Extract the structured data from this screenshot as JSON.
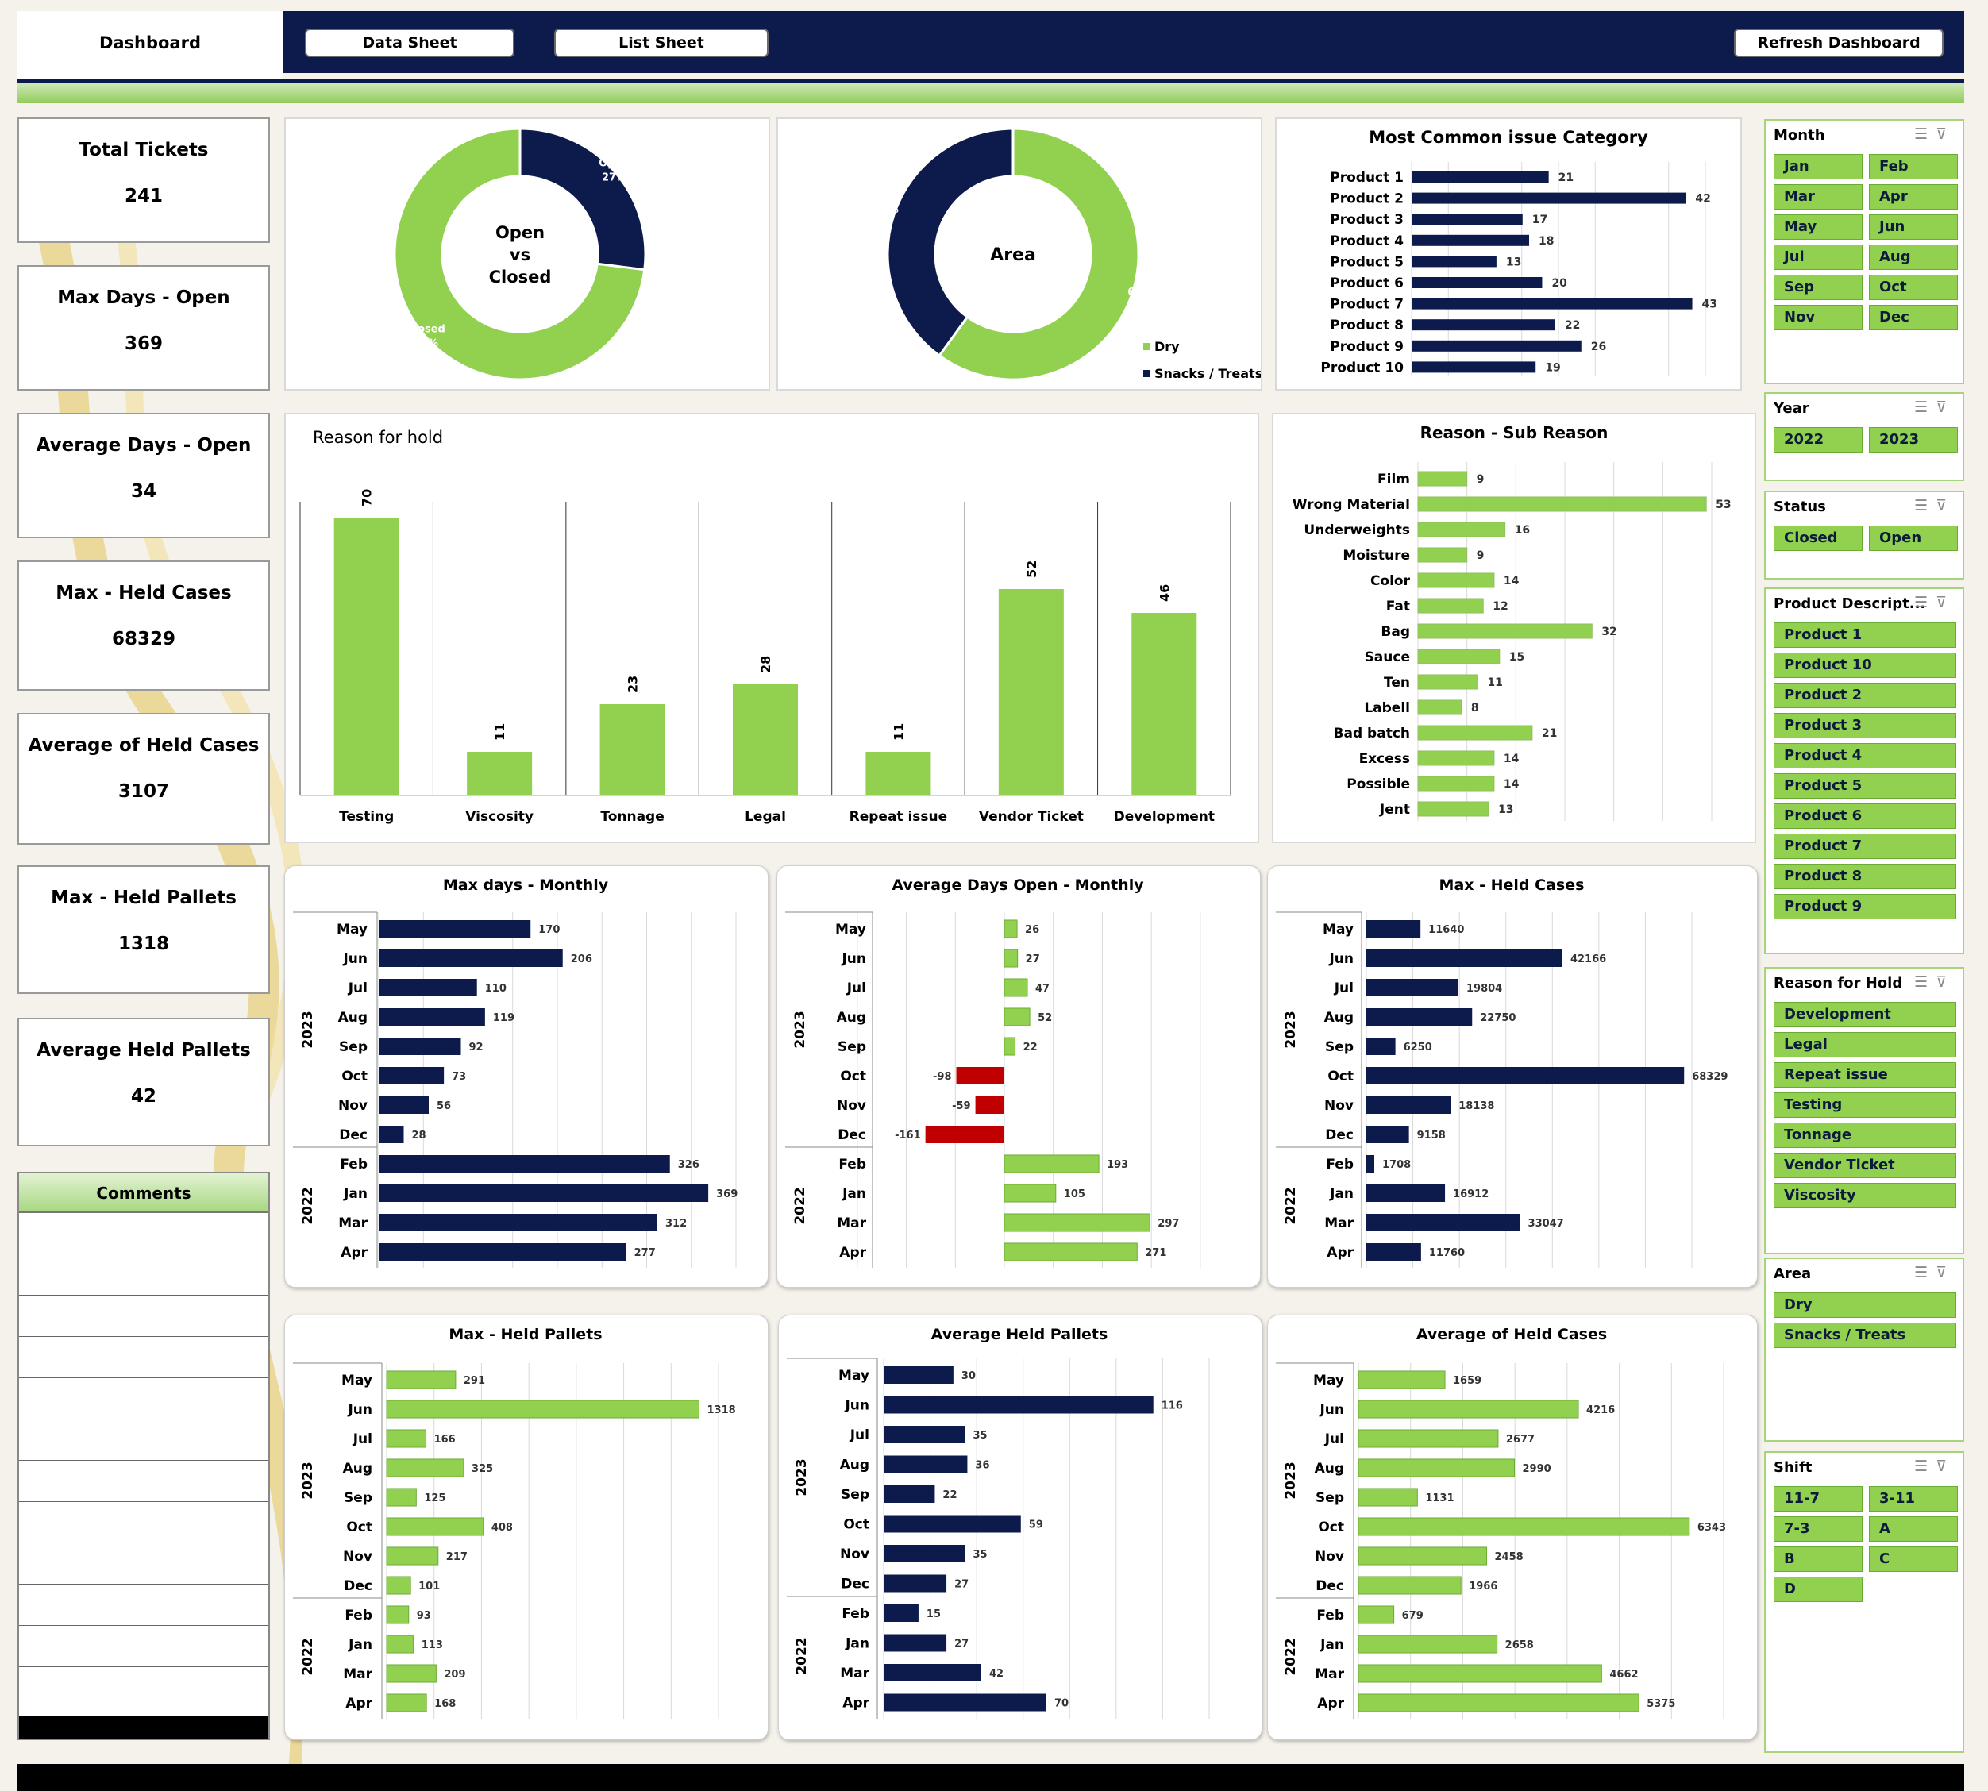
{
  "nav": {
    "dashboard": "Dashboard",
    "data_sheet": "Data Sheet",
    "list_sheet": "List Sheet",
    "refresh": "Refresh Dashboard"
  },
  "kpis": [
    {
      "label": "Total Tickets",
      "value": "241"
    },
    {
      "label": "Max Days - Open",
      "value": "369"
    },
    {
      "label": "Average Days - Open",
      "value": "34"
    },
    {
      "label": "Max - Held Cases",
      "value": "68329"
    },
    {
      "label": "Average of Held Cases",
      "value": "3107"
    },
    {
      "label": "Max - Held Pallets",
      "value": "1318"
    },
    {
      "label": "Average Held Pallets",
      "value": "42"
    }
  ],
  "comments": {
    "title": "Comments"
  },
  "colors": {
    "green": "#92d050",
    "navy": "#0c1b4b",
    "red": "#c00000"
  },
  "slicers": {
    "month": {
      "title": "Month",
      "items": [
        "Jan",
        "Feb",
        "Mar",
        "Apr",
        "May",
        "Jun",
        "Jul",
        "Aug",
        "Sep",
        "Oct",
        "Nov",
        "Dec"
      ]
    },
    "year": {
      "title": "Year",
      "items": [
        "2022",
        "2023"
      ]
    },
    "status": {
      "title": "Status",
      "items": [
        "Closed",
        "Open"
      ]
    },
    "product": {
      "title": "Product Descript...",
      "items": [
        "Product 1",
        "Product 10",
        "Product 2",
        "Product 3",
        "Product 4",
        "Product 5",
        "Product 6",
        "Product 7",
        "Product 8",
        "Product 9"
      ]
    },
    "reason": {
      "title": "Reason for Hold",
      "items": [
        "Development",
        "Legal",
        "Repeat issue",
        "Testing",
        "Tonnage",
        "Vendor Ticket",
        "Viscosity"
      ]
    },
    "area": {
      "title": "Area",
      "items": [
        "Dry",
        "Snacks / Treats"
      ]
    },
    "shift": {
      "title": "Shift",
      "items": [
        "11-7",
        "3-11",
        "7-3",
        "A",
        "B",
        "C",
        "D"
      ]
    },
    "icons": [
      "multi-select-icon",
      "clear-filter-icon"
    ]
  },
  "chart_data": [
    {
      "id": "open-closed",
      "type": "pie",
      "title": "Open vs Closed",
      "categories": [
        "Open",
        "Closed"
      ],
      "values": [
        27,
        73
      ],
      "labels": [
        "27%",
        "73%"
      ],
      "colors": [
        "#0c1b4b",
        "#92d050"
      ]
    },
    {
      "id": "area",
      "type": "pie",
      "title": "Area",
      "categories": [
        "Dry",
        "Snacks / Treats"
      ],
      "values": [
        60,
        40
      ],
      "labels": [
        "60%",
        "40%"
      ],
      "colors": [
        "#92d050",
        "#0c1b4b"
      ],
      "legend": "bottom-right"
    },
    {
      "id": "issue-category",
      "type": "bar",
      "title": "Most Common issue Category",
      "categories": [
        "Product 1",
        "Product 2",
        "Product 3",
        "Product 4",
        "Product 5",
        "Product 6",
        "Product 7",
        "Product 8",
        "Product 9",
        "Product 10"
      ],
      "values": [
        21,
        42,
        17,
        18,
        13,
        20,
        43,
        22,
        26,
        19
      ],
      "color": "#0c1b4b"
    },
    {
      "id": "reason-hold",
      "type": "bar",
      "title": "Reason for hold",
      "categories": [
        "Testing",
        "Viscosity",
        "Tonnage",
        "Legal",
        "Repeat issue",
        "Vendor Ticket",
        "Development"
      ],
      "values": [
        70,
        11,
        23,
        28,
        11,
        52,
        46
      ],
      "color": "#92d050"
    },
    {
      "id": "sub-reason",
      "type": "bar",
      "title": "Reason - Sub Reason",
      "categories": [
        "Film",
        "Wrong Material",
        "Underweights",
        "Moisture",
        "Color",
        "Fat",
        "Bag",
        "Sauce",
        "Ten",
        "Labell",
        "Bad batch",
        "Excess",
        "Possible",
        "Jent"
      ],
      "values": [
        9,
        53,
        16,
        9,
        14,
        12,
        32,
        15,
        11,
        8,
        21,
        14,
        14,
        13
      ],
      "color": "#92d050"
    },
    {
      "id": "max-days-monthly",
      "type": "bar",
      "title": "Max days - Monthly",
      "groups": [
        "2023",
        "2022"
      ],
      "categories": [
        "May",
        "Jun",
        "Jul",
        "Aug",
        "Sep",
        "Oct",
        "Nov",
        "Dec",
        "Feb",
        "Jan",
        "Mar",
        "Apr"
      ],
      "values": [
        170,
        206,
        110,
        119,
        92,
        73,
        56,
        28,
        326,
        369,
        312,
        277
      ],
      "color": "#0c1b4b"
    },
    {
      "id": "avg-days-open-monthly",
      "type": "bar",
      "title": "Average Days Open - Monthly",
      "groups": [
        "2023",
        "2022"
      ],
      "categories": [
        "May",
        "Jun",
        "Jul",
        "Aug",
        "Sep",
        "Oct",
        "Nov",
        "Dec",
        "Feb",
        "Jan",
        "Mar",
        "Apr"
      ],
      "values": [
        26,
        27,
        47,
        52,
        22,
        -98,
        -59,
        -161,
        193,
        105,
        297,
        271
      ],
      "color": "#92d050",
      "negative_color": "#c00000"
    },
    {
      "id": "max-held-cases",
      "type": "bar",
      "title": "Max - Held Cases",
      "groups": [
        "2023",
        "2022"
      ],
      "categories": [
        "May",
        "Jun",
        "Jul",
        "Aug",
        "Sep",
        "Oct",
        "Nov",
        "Dec",
        "Feb",
        "Jan",
        "Mar",
        "Apr"
      ],
      "values": [
        11640,
        42166,
        19804,
        22750,
        6250,
        68329,
        18138,
        9158,
        1708,
        16912,
        33047,
        11760
      ],
      "color": "#0c1b4b"
    },
    {
      "id": "max-held-pallets",
      "type": "bar",
      "title": "Max - Held Pallets",
      "groups": [
        "2023",
        "2022"
      ],
      "categories": [
        "May",
        "Jun",
        "Jul",
        "Aug",
        "Sep",
        "Oct",
        "Nov",
        "Dec",
        "Feb",
        "Jan",
        "Mar",
        "Apr"
      ],
      "values": [
        291,
        1318,
        166,
        325,
        125,
        408,
        217,
        101,
        93,
        113,
        209,
        168
      ],
      "color": "#92d050"
    },
    {
      "id": "avg-held-pallets",
      "type": "bar",
      "title": "Average Held Pallets",
      "groups": [
        "2023",
        "2022"
      ],
      "categories": [
        "May",
        "Jun",
        "Jul",
        "Aug",
        "Sep",
        "Oct",
        "Nov",
        "Dec",
        "Feb",
        "Jan",
        "Mar",
        "Apr"
      ],
      "values": [
        30,
        116,
        35,
        36,
        22,
        59,
        35,
        27,
        15,
        27,
        42,
        70
      ],
      "color": "#0c1b4b"
    },
    {
      "id": "avg-held-cases",
      "type": "bar",
      "title": "Average of Held Cases",
      "groups": [
        "2023",
        "2022"
      ],
      "categories": [
        "May",
        "Jun",
        "Jul",
        "Aug",
        "Sep",
        "Oct",
        "Nov",
        "Dec",
        "Feb",
        "Jan",
        "Mar",
        "Apr"
      ],
      "values": [
        1659,
        4216,
        2677,
        2990,
        1131,
        6343,
        2458,
        1966,
        679,
        2658,
        4662,
        5375
      ],
      "color": "#92d050"
    }
  ]
}
